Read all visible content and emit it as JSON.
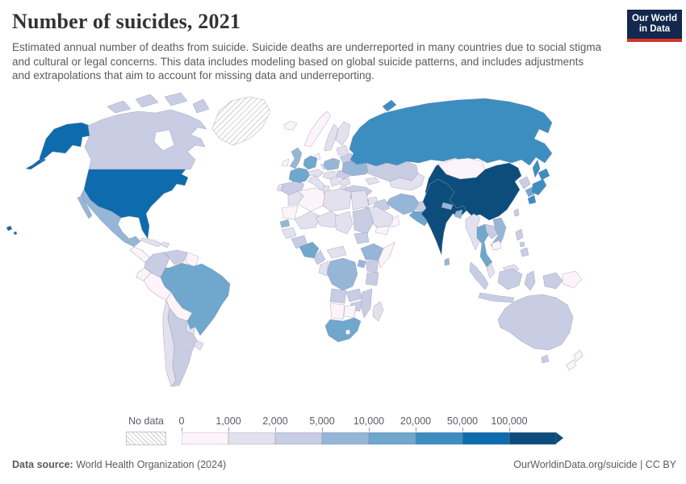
{
  "header": {
    "title": "Number of suicides, 2021",
    "subtitle": "Estimated annual number of deaths from suicide. Suicide deaths are underreported in many countries due to social stigma and cultural or legal concerns. This data includes modeling based on global suicide patterns, and includes adjustments and extrapolations that aim to account for missing data and underreporting."
  },
  "logo": {
    "line1": "Our World",
    "line2": "in Data",
    "bg_color": "#12284c",
    "accent_color": "#d5342c"
  },
  "legend": {
    "no_data_label": "No data",
    "tick_labels": [
      "0",
      "1,000",
      "2,000",
      "5,000",
      "10,000",
      "20,000",
      "50,000",
      "100,000"
    ]
  },
  "footer": {
    "source_label": "Data source:",
    "source_value": " World Health Organization (2024)",
    "right_text": "OurWorldinData.org/suicide | CC BY"
  },
  "chart_data": {
    "type": "heatmap",
    "variant": "world-choropleth",
    "title": "Number of suicides, 2021",
    "unit": "suicide deaths per year",
    "legend_position": "bottom",
    "no_data": {
      "label": "No data",
      "pattern": "diagonal-hatch"
    },
    "bins": [
      {
        "range": "0–1,000",
        "min": 0,
        "max": 1000,
        "color": "#fcf4f9"
      },
      {
        "range": "1,000–2,000",
        "min": 1000,
        "max": 2000,
        "color": "#e4e1ef"
      },
      {
        "range": "2,000–5,000",
        "min": 2000,
        "max": 5000,
        "color": "#c9cde3"
      },
      {
        "range": "5,000–10,000",
        "min": 5000,
        "max": 10000,
        "color": "#96b6d8"
      },
      {
        "range": "10,000–20,000",
        "min": 10000,
        "max": 20000,
        "color": "#6fa7cd"
      },
      {
        "range": "20,000–50,000",
        "min": 20000,
        "max": 50000,
        "color": "#3d8ec0"
      },
      {
        "range": "50,000–100,000",
        "min": 50000,
        "max": 100000,
        "color": "#0e6bad"
      },
      {
        "range": "100,000+",
        "min": 100000,
        "max": null,
        "color": "#0c4d7c"
      }
    ],
    "countries_by_bin": {
      "greenland": "no_data",
      "canada": 3,
      "usa": 7,
      "mexico": 4,
      "central-america": 1,
      "cuba": 2,
      "hispaniola": 2,
      "colombia": 3,
      "venezuela": 3,
      "guyanas": 1,
      "ecuador": 1,
      "peru": 1,
      "brazil": 5,
      "bolivia": 1,
      "paraguay": 2,
      "chile": 2,
      "argentina": 3,
      "uruguay": 2,
      "iceland": 1,
      "uk": 4,
      "ireland": 1,
      "norway": 1,
      "sweden": 2,
      "finland": 2,
      "denmark": 1,
      "germany": 5,
      "france": 5,
      "spain": 3,
      "portugal": 2,
      "italy": 2,
      "switzerland-austria": 2,
      "czech-slovakia": 2,
      "poland": 4,
      "hungary": 2,
      "balkans": 2,
      "romania": 3,
      "bulgaria": 2,
      "greece": 2,
      "baltics": 2,
      "belarus": 3,
      "ukraine": 4,
      "russia": 6,
      "kazakhstan": 3,
      "central-asia": 2,
      "caucasus": 2,
      "turkey": 3,
      "syria": 2,
      "iraq": 3,
      "jordan-israel": 2,
      "saudi-arabia": 2,
      "yemen": 1,
      "oman": 1,
      "iran": 4,
      "afghanistan": 3,
      "pakistan": 5,
      "india": 8,
      "nepal": 4,
      "bangladesh": 4,
      "sri-lanka": 4,
      "china": 8,
      "mongolia": 1,
      "taiwan": 3,
      "north-korea": 3,
      "south-korea": 5,
      "japan": 6,
      "myanmar": 2,
      "thailand": 5,
      "laos": 3,
      "vietnam": 4,
      "cambodia": 1,
      "malaysia": 2,
      "indonesia": 3,
      "philippines": 3,
      "papua-new-guinea": 1,
      "australia": 3,
      "new-zealand": 1,
      "morocco": 2,
      "algeria": 1,
      "tunisia": 2,
      "libya": 2,
      "egypt": 2,
      "mauritania": 1,
      "mali": 2,
      "niger": 2,
      "chad": 2,
      "sudan": 3,
      "senegal": 4,
      "guinea": 2,
      "ivory-ghana": 3,
      "nigeria": 5,
      "cameroon": 3,
      "car": 2,
      "south-sudan": 3,
      "ethiopia": 4,
      "somalia": 1,
      "kenya": 3,
      "uganda": 4,
      "dr-congo": 4,
      "gabon-congo": 2,
      "tanzania": 3,
      "angola": 3,
      "zambia": 3,
      "mozambique": 3,
      "zimbabwe": 3,
      "namibia": 1,
      "botswana": 1,
      "south-africa": 5,
      "lesotho": 1,
      "madagascar": 2
    }
  }
}
